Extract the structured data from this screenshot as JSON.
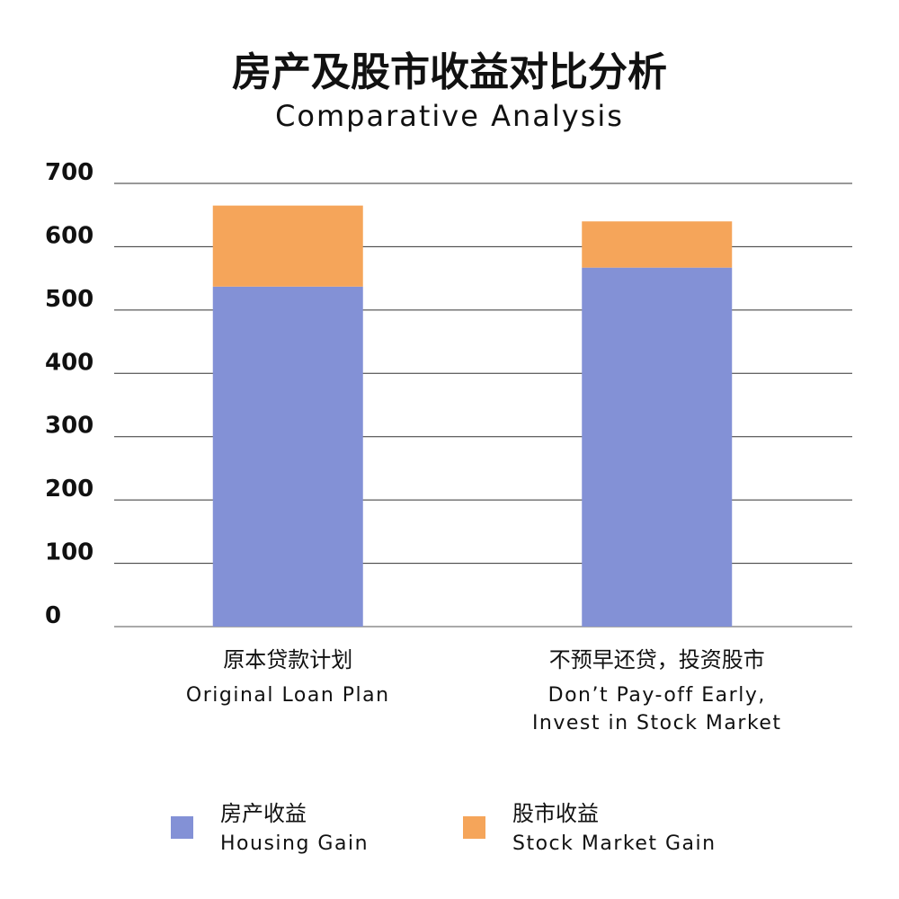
{
  "chart_data": {
    "type": "stacked_bar",
    "title": "房产及股市收益对比分析",
    "subtitle": "Comparative Analysis",
    "categories": [
      "原本贷款计划",
      "不预早还贷，投资股市"
    ],
    "categories_en": [
      [
        "Original Loan Plan"
      ],
      [
        "Don’t Pay-off Early,",
        "Invest in Stock Market"
      ]
    ],
    "series": [
      {
        "name": "房产收益",
        "name_en": "Housing Gain",
        "color": "#8391d6",
        "values": [
          537,
          567
        ]
      },
      {
        "name": "股市收益",
        "name_en": "Stock Market Gain",
        "color": "#f5a55a",
        "values": [
          128,
          73
        ]
      }
    ],
    "ylim": [
      0,
      700
    ],
    "yticks": [
      0,
      100,
      200,
      300,
      400,
      500,
      600,
      700
    ],
    "grid": true
  }
}
